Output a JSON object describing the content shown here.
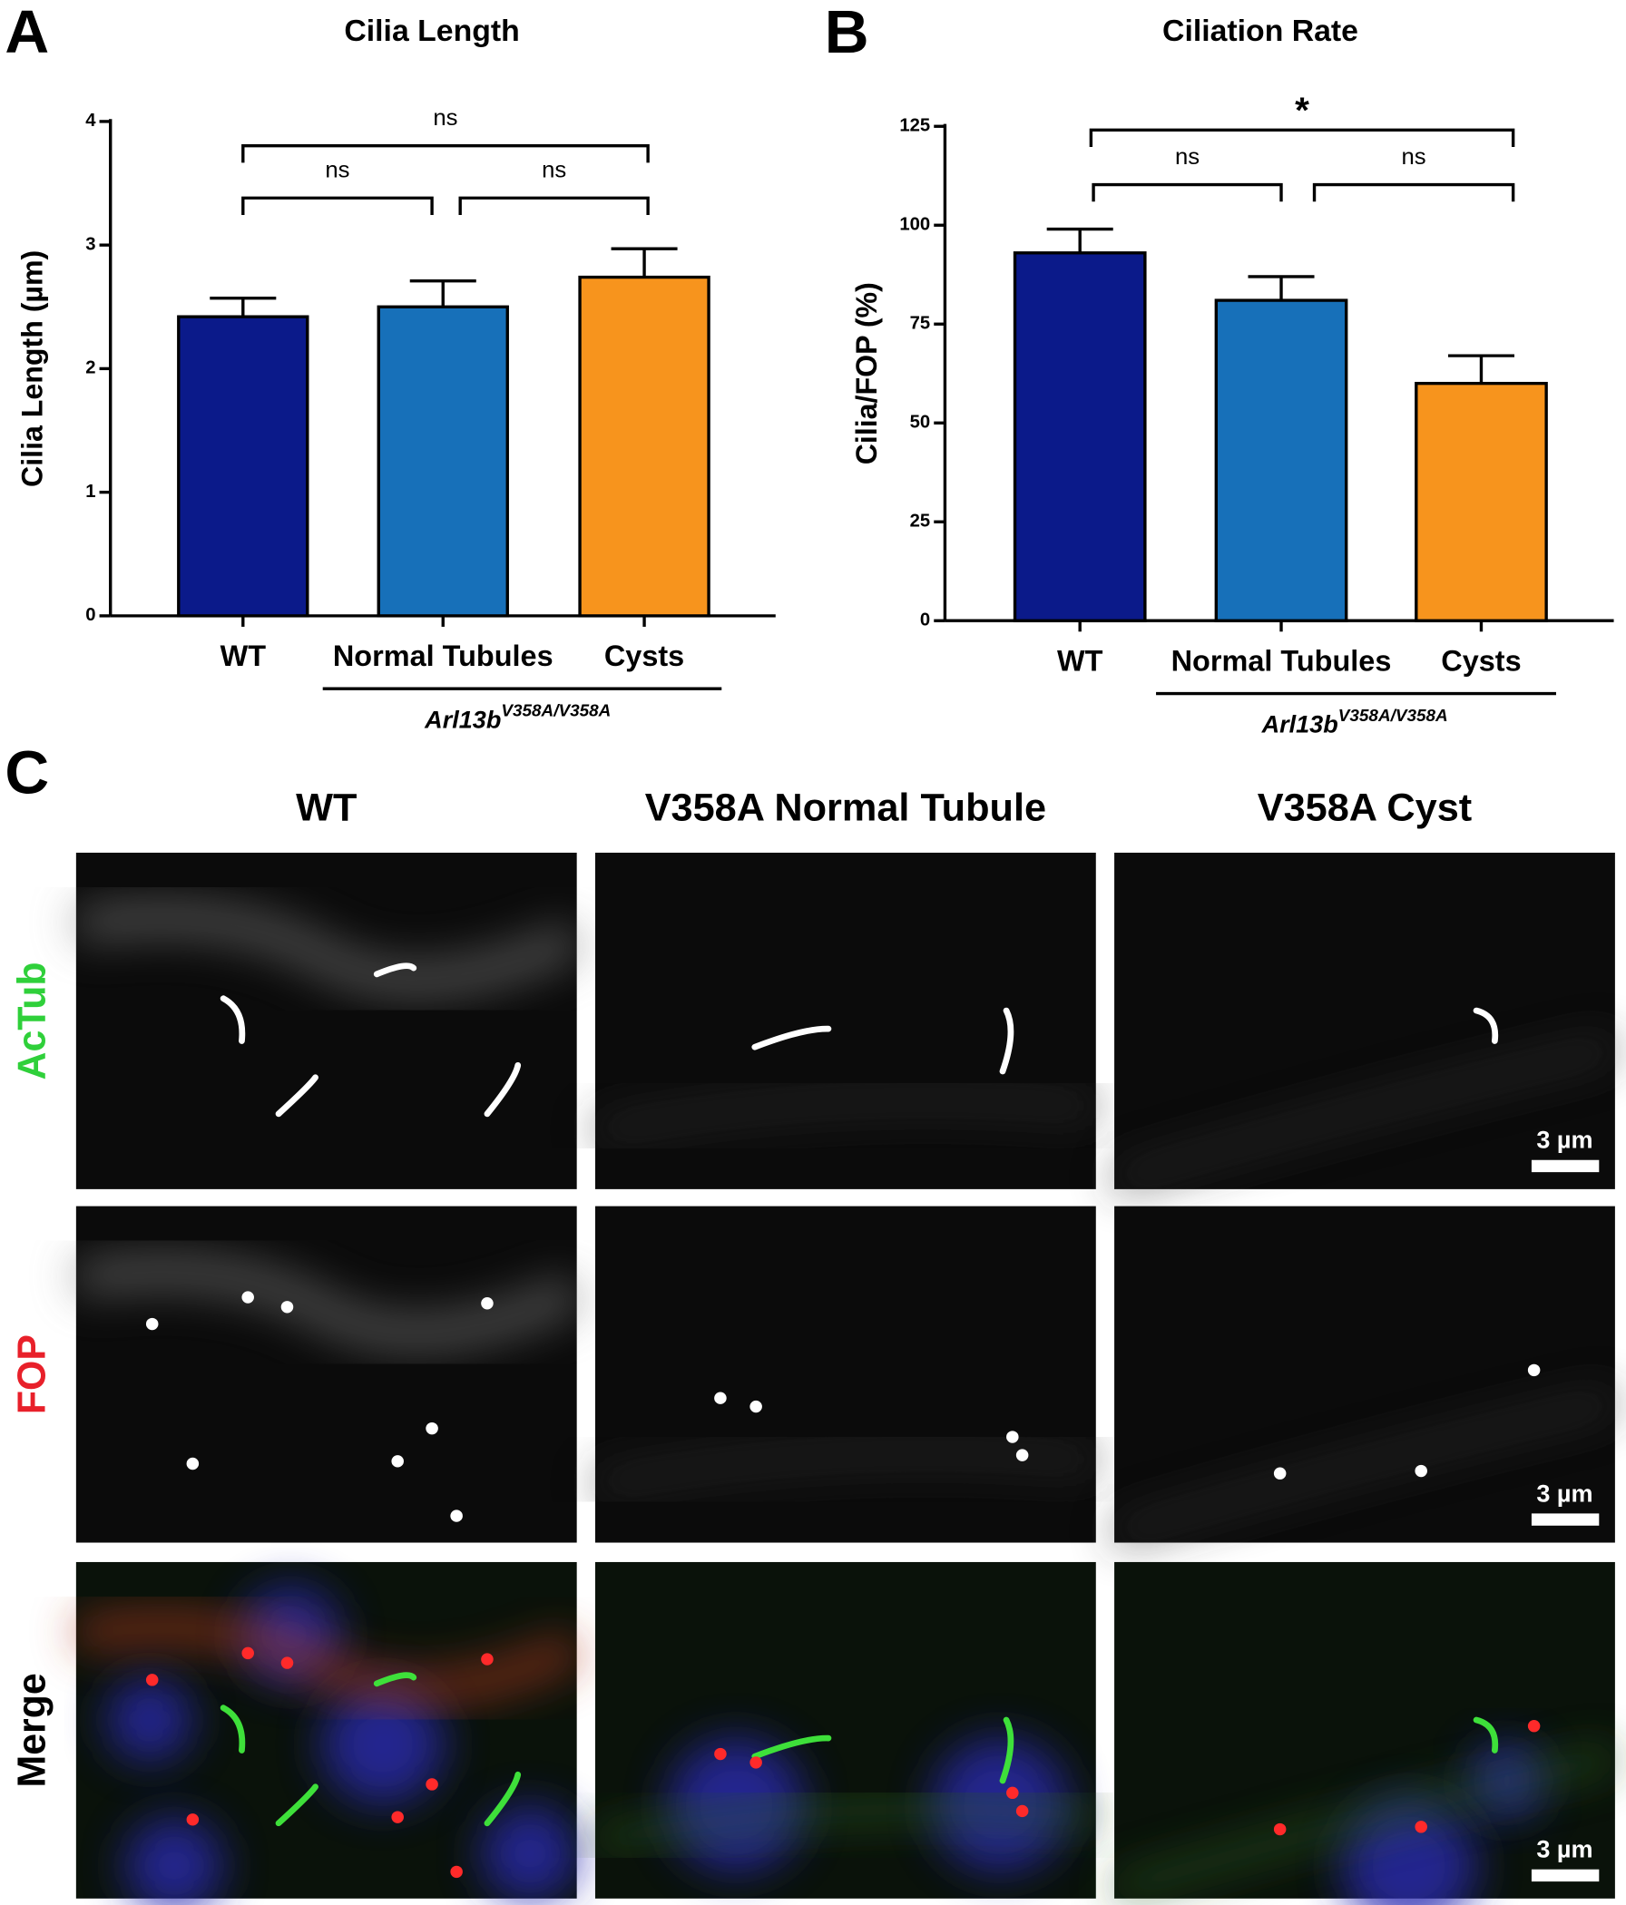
{
  "chart_data": [
    {
      "type": "bar",
      "panel": "A",
      "title": "Cilia Length",
      "y_label": "Cilia Length (µm)",
      "categories": [
        "WT",
        "Normal Tubules",
        "Cysts"
      ],
      "values": [
        2.42,
        2.5,
        2.74
      ],
      "errors": [
        0.15,
        0.21,
        0.23
      ],
      "colors": [
        "#0b1a8a",
        "#1770b9",
        "#f7941d"
      ],
      "ylim": [
        0,
        4
      ],
      "yticks": [
        0,
        1,
        2,
        3,
        4
      ],
      "annotations": [
        "ns",
        "ns",
        "ns"
      ],
      "group_label": {
        "text": "Arl13b",
        "superscript": "V358A/V358A"
      }
    },
    {
      "type": "bar",
      "panel": "B",
      "title": "Ciliation Rate",
      "y_label": "Cilia/FOP (%)",
      "categories": [
        "WT",
        "Normal Tubules",
        "Cysts"
      ],
      "values": [
        93,
        81,
        60
      ],
      "errors": [
        6,
        6,
        7
      ],
      "colors": [
        "#0b1a8a",
        "#1770b9",
        "#f7941d"
      ],
      "ylim": [
        0,
        125
      ],
      "yticks": [
        0,
        25,
        50,
        75,
        100,
        125
      ],
      "annotations": [
        "*",
        "ns",
        "ns"
      ],
      "group_label": {
        "text": "Arl13b",
        "superscript": "V358A/V358A"
      }
    }
  ],
  "panel_c": {
    "panel": "C",
    "columns": [
      "WT",
      "V358A Normal Tubule",
      "V358A Cyst"
    ],
    "rows": [
      "AcTub",
      "FOP",
      "Merge"
    ],
    "scale_bar": "3 µm"
  }
}
